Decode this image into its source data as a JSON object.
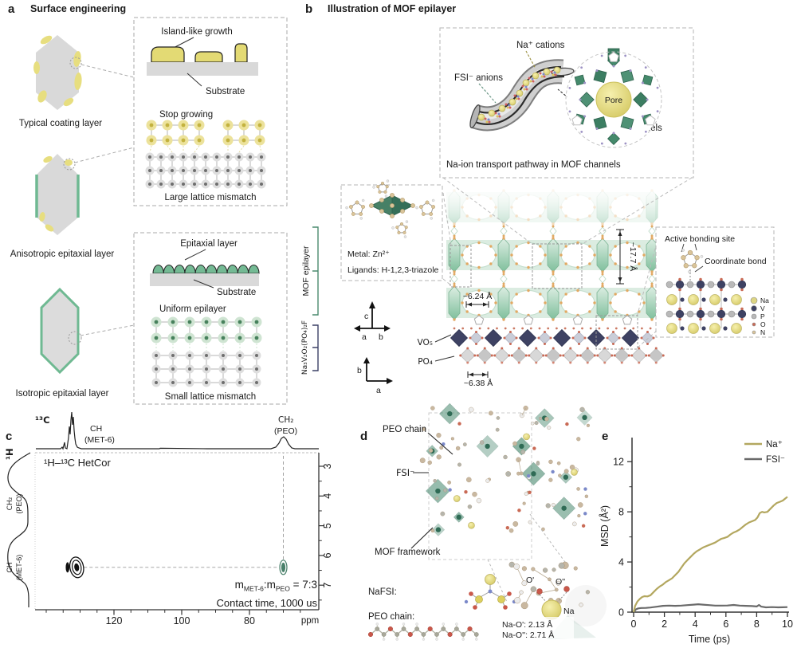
{
  "figure": {
    "panels": {
      "a": "a",
      "b": "b",
      "c": "c",
      "d": "d",
      "e": "e"
    }
  },
  "panel_a": {
    "title": "Surface engineering",
    "crystal_labels": {
      "typical": "Typical coating layer",
      "anisotropic": "Anisotropic epitaxial layer",
      "isotropic": "Isotropic epitaxial layer"
    },
    "box_island": {
      "island": "Island-like growth",
      "substrate": "Substrate",
      "stop": "Stop growing",
      "mismatch": "Large lattice mismatch"
    },
    "box_epitaxial": {
      "epitaxial": "Epitaxial layer",
      "substrate": "Substrate",
      "uniform": "Uniform epilayer",
      "mismatch": "Small lattice mismatch"
    },
    "brackets": {
      "mof": "MOF epilayer",
      "nvpf": "Na₃V₂O₂(PO₄)₂F"
    }
  },
  "panel_b": {
    "title": "Illustration of MOF epilayer",
    "channel_inset": {
      "na_cations": "Na⁺ cations",
      "fsi_anions": "FSI⁻ anions",
      "mof_channels": "MOF channels",
      "pore": "Pore",
      "caption": "Na-ion transport pathway in MOF channels"
    },
    "metal_inset": {
      "metal": "Metal: Zn²⁺",
      "ligands": "Ligands: H-1,2,3-triazole"
    },
    "dimensions": {
      "pore_width": "~6.24 Å",
      "layer_height": "~17.7 Å",
      "substrate_period": "~6.38 Å"
    },
    "substrate_labels": {
      "vo5": "VO₅",
      "po4": "PO₄"
    },
    "axis1": {
      "up": "c",
      "left": "a",
      "right": "b"
    },
    "axis2": {
      "up": "b",
      "right": "a"
    },
    "bonding_inset": {
      "title": "Active bonding site",
      "coordinate_bond": "Coordinate bond",
      "legend": [
        {
          "label": "Na",
          "color": "#ddd584"
        },
        {
          "label": "V",
          "color": "#3e4263"
        },
        {
          "label": "P",
          "color": "#b9b9b9"
        },
        {
          "label": "O",
          "color": "#c96a55"
        },
        {
          "label": "N",
          "color": "#d9c49a"
        }
      ]
    }
  },
  "panel_c": {
    "nucleus_x": "¹³C",
    "nucleus_y": "¹H",
    "experiment": "¹H–¹³C HetCor",
    "peak_top_1": {
      "line1": "CH",
      "line2": "(MET-6)"
    },
    "peak_top_2": {
      "line1": "CH₂",
      "line2": "(PEO)"
    },
    "peak_left_1": {
      "line1": "CH₂",
      "line2": "(PEO)"
    },
    "peak_left_2": {
      "line1": "CH",
      "line2": "(MET-6)"
    },
    "ratio": {
      "m1": "m",
      "sub1": "MET-6",
      "m2": ":m",
      "sub2": "PEO",
      "eq": " = 7:3"
    },
    "contact": "Contact time, 1000 us",
    "x_unit": "ppm"
  },
  "panel_d": {
    "peo_chain": "PEO chain",
    "fsi": "FSI⁻",
    "mof_framework": "MOF framework",
    "nafsi": "NaFSI:",
    "peo_chain2": "PEO chain:",
    "inset": {
      "o_prime": "O'",
      "o_dprime": "O''",
      "na": "Na",
      "bond1": "Na-O': 2.13 Å",
      "bond2": "Na-O'': 2.71 Å"
    }
  },
  "panel_e": {
    "ylabel": "MSD (Å²)",
    "xlabel": "Time (ps)"
  },
  "chart_data": [
    {
      "id": "hetcor_nmr",
      "type": "heatmap",
      "title": "¹H–¹³C HetCor",
      "x_axis_nucleus": "¹³C",
      "x_unit": "ppm",
      "x_ticks": [
        120,
        100,
        80
      ],
      "x_range_display": [
        143,
        62
      ],
      "y_axis_nucleus": "¹H",
      "y_ticks": [
        3,
        4,
        5,
        6,
        7
      ],
      "y_range_display": [
        2.5,
        7.8
      ],
      "cross_peaks": [
        {
          "c13_ppm": 131,
          "h1_ppm": 6.4,
          "assignment": "CH (MET-6)",
          "color": "#111111"
        },
        {
          "c13_ppm": 70,
          "h1_ppm": 6.4,
          "assignment": "CH₂ (PEO)",
          "color": "#49806a"
        }
      ],
      "c13_projection_peaks": [
        {
          "ppm": 131,
          "label": "CH (MET-6)"
        },
        {
          "ppm": 70,
          "label": "CH₂ (PEO)"
        }
      ],
      "h1_projection_peaks": [
        {
          "ppm": 3.8,
          "label": "CH₂ (PEO)"
        },
        {
          "ppm": 6.5,
          "label": "CH (MET-6)"
        }
      ],
      "annotations": [
        "m(MET-6):m(PEO) = 7:3",
        "Contact time, 1000 us"
      ]
    },
    {
      "id": "msd",
      "type": "line",
      "xlabel": "Time (ps)",
      "ylabel": "MSD (Å²)",
      "xlim": [
        0,
        10
      ],
      "ylim": [
        0,
        13.7
      ],
      "x_ticks": [
        0,
        2,
        4,
        6,
        8,
        10
      ],
      "y_ticks": [
        0,
        4,
        8,
        12
      ],
      "legend_position": "top-right",
      "series": [
        {
          "name": "FSI⁻",
          "color": "#6a6a6a",
          "points": [
            [
              0,
              0
            ],
            [
              0.15,
              0.22
            ],
            [
              0.3,
              0.3
            ],
            [
              0.5,
              0.33
            ],
            [
              0.8,
              0.34
            ],
            [
              1.1,
              0.37
            ],
            [
              1.5,
              0.43
            ],
            [
              1.9,
              0.5
            ],
            [
              2.3,
              0.52
            ],
            [
              2.7,
              0.5
            ],
            [
              3.1,
              0.52
            ],
            [
              3.5,
              0.56
            ],
            [
              3.9,
              0.6
            ],
            [
              4.2,
              0.63
            ],
            [
              4.5,
              0.6
            ],
            [
              4.9,
              0.56
            ],
            [
              5.3,
              0.52
            ],
            [
              5.7,
              0.52
            ],
            [
              6.1,
              0.53
            ],
            [
              6.5,
              0.57
            ],
            [
              6.9,
              0.52
            ],
            [
              7.3,
              0.5
            ],
            [
              7.7,
              0.48
            ],
            [
              8.0,
              0.45
            ],
            [
              8.15,
              0.57
            ],
            [
              8.3,
              0.44
            ],
            [
              8.6,
              0.38
            ],
            [
              9.0,
              0.4
            ],
            [
              9.4,
              0.38
            ],
            [
              9.7,
              0.39
            ],
            [
              10,
              0.4
            ]
          ]
        },
        {
          "name": "Na⁺",
          "color": "#b3a75f",
          "points": [
            [
              0,
              0
            ],
            [
              0.1,
              0.5
            ],
            [
              0.25,
              0.85
            ],
            [
              0.4,
              1.05
            ],
            [
              0.55,
              1.2
            ],
            [
              0.7,
              1.27
            ],
            [
              0.9,
              1.25
            ],
            [
              1.1,
              1.35
            ],
            [
              1.3,
              1.6
            ],
            [
              1.5,
              1.85
            ],
            [
              1.7,
              2.05
            ],
            [
              1.9,
              2.2
            ],
            [
              2.1,
              2.4
            ],
            [
              2.3,
              2.55
            ],
            [
              2.5,
              2.7
            ],
            [
              2.7,
              2.95
            ],
            [
              2.9,
              3.2
            ],
            [
              3.1,
              3.55
            ],
            [
              3.3,
              3.9
            ],
            [
              3.5,
              4.15
            ],
            [
              3.7,
              4.4
            ],
            [
              3.9,
              4.65
            ],
            [
              4.1,
              4.85
            ],
            [
              4.3,
              5.0
            ],
            [
              4.5,
              5.15
            ],
            [
              4.7,
              5.25
            ],
            [
              4.9,
              5.35
            ],
            [
              5.1,
              5.45
            ],
            [
              5.3,
              5.55
            ],
            [
              5.5,
              5.7
            ],
            [
              5.7,
              5.85
            ],
            [
              5.9,
              5.92
            ],
            [
              6.1,
              6.0
            ],
            [
              6.3,
              6.2
            ],
            [
              6.5,
              6.35
            ],
            [
              6.7,
              6.45
            ],
            [
              6.9,
              6.6
            ],
            [
              7.1,
              6.8
            ],
            [
              7.3,
              7.0
            ],
            [
              7.5,
              7.15
            ],
            [
              7.7,
              7.25
            ],
            [
              7.9,
              7.35
            ],
            [
              8.05,
              7.55
            ],
            [
              8.2,
              7.9
            ],
            [
              8.35,
              8.0
            ],
            [
              8.5,
              7.95
            ],
            [
              8.7,
              8.0
            ],
            [
              8.9,
              8.25
            ],
            [
              9.1,
              8.5
            ],
            [
              9.3,
              8.7
            ],
            [
              9.5,
              8.8
            ],
            [
              9.7,
              8.9
            ],
            [
              9.85,
              9.05
            ],
            [
              10,
              9.2
            ]
          ]
        }
      ]
    }
  ],
  "colors": {
    "coating_yellow": "#e7de7f",
    "epilayer_green": "#74ba94",
    "mof_green": "#8cc7a4",
    "navy": "#3e4263",
    "na_olive": "#9a8f3e",
    "fsi_teal": "#5f8f7c",
    "na_line": "#b3a75f",
    "fsi_line": "#6a6a6a",
    "green_peak": "#49806a"
  }
}
